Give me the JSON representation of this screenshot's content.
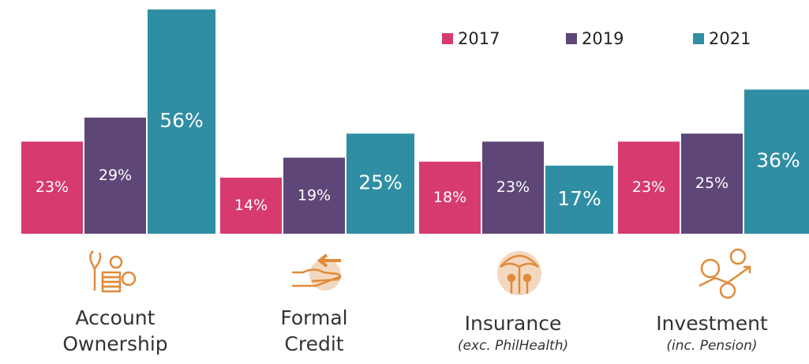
{
  "chart_data": {
    "type": "bar",
    "categories": [
      "Account Ownership",
      "Formal Credit",
      "Insurance",
      "Investment"
    ],
    "category_notes": [
      null,
      null,
      "(exc. PhilHealth)",
      "(inc. Pension)"
    ],
    "series": [
      {
        "name": "2017",
        "color": "#d63a6e",
        "values": [
          23,
          14,
          18,
          23
        ],
        "value_labels": [
          "23%",
          "14%",
          "18%",
          "23%"
        ]
      },
      {
        "name": "2019",
        "color": "#5e4678",
        "values": [
          29,
          19,
          23,
          25
        ],
        "value_labels": [
          "29%",
          "19%",
          "23%",
          "25%"
        ]
      },
      {
        "name": "2021",
        "color": "#2f8ea3",
        "values": [
          56,
          25,
          17,
          36
        ],
        "value_labels": [
          "56%",
          "25%",
          "17%",
          "36%"
        ]
      }
    ],
    "legend": "top-right"
  }
}
